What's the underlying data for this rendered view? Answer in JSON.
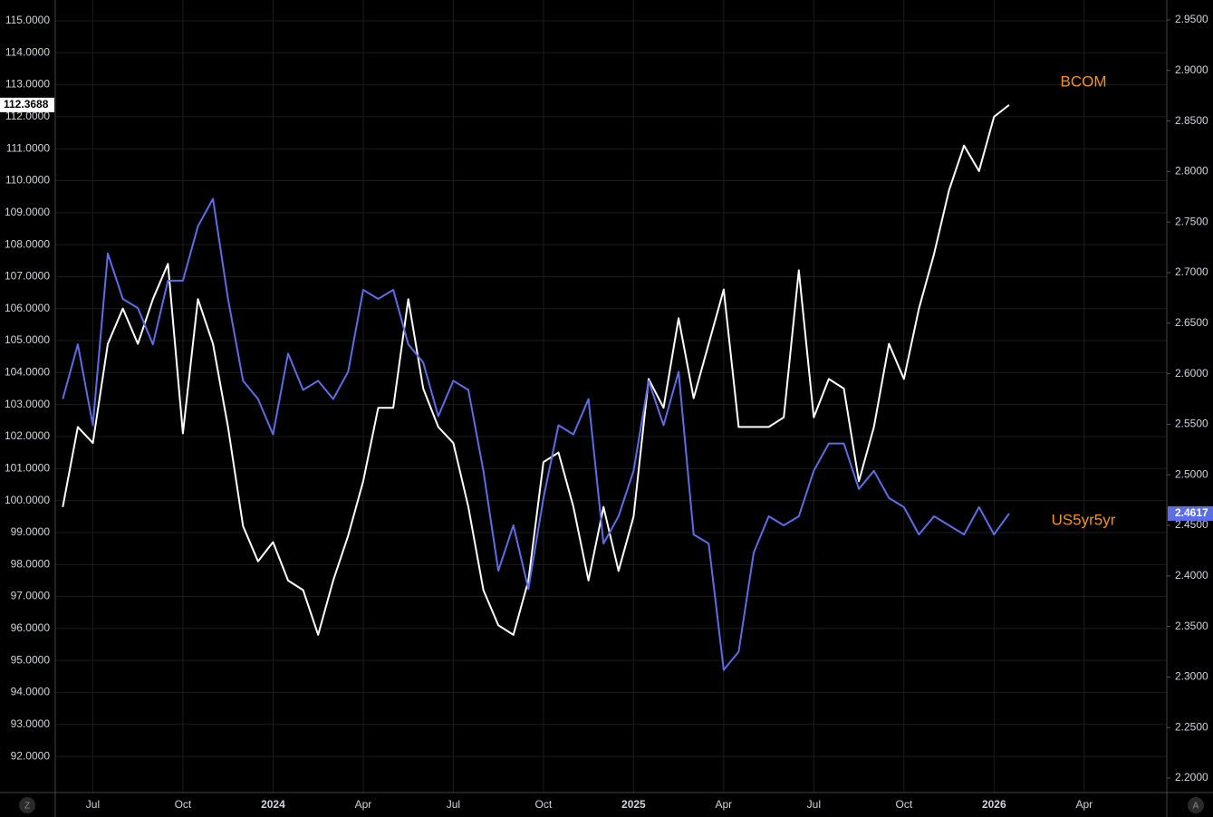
{
  "chart_data": {
    "type": "line",
    "categories": [
      null,
      null,
      "Jul",
      null,
      null,
      null,
      null,
      null,
      "Oct",
      null,
      null,
      null,
      null,
      null,
      "2024",
      null,
      null,
      null,
      null,
      null,
      "Apr",
      null,
      null,
      null,
      null,
      null,
      "Jul",
      null,
      null,
      null,
      null,
      null,
      "Oct",
      null,
      null,
      null,
      null,
      null,
      "2025",
      null,
      null,
      null,
      null,
      null,
      "Apr",
      null,
      null,
      null,
      null,
      null,
      "Jul",
      null,
      null,
      null,
      null,
      null,
      "Oct",
      null,
      null,
      null,
      null,
      null,
      "2026",
      null,
      null,
      null,
      null,
      null,
      "Apr",
      null,
      null,
      null,
      null,
      null
    ],
    "series": [
      {
        "name": "BCOM",
        "color": "#ffffff",
        "axis": "y",
        "last_value_label": "112.3688",
        "values": [
          99.8,
          102.3,
          101.8,
          104.9,
          106.0,
          104.9,
          106.3,
          107.4,
          102.1,
          106.3,
          104.9,
          102.3,
          99.2,
          98.1,
          98.7,
          97.5,
          97.2,
          95.8,
          97.5,
          98.9,
          100.6,
          102.9,
          102.9,
          106.3,
          103.5,
          102.3,
          101.8,
          99.8,
          97.2,
          96.1,
          95.8,
          97.5,
          101.2,
          101.5,
          99.8,
          97.5,
          99.8,
          97.8,
          99.5,
          103.8,
          102.9,
          105.7,
          103.2,
          104.9,
          106.6,
          102.3,
          102.3,
          102.3,
          102.6,
          107.2,
          102.6,
          103.8,
          103.5,
          100.6,
          102.3,
          104.9,
          103.8,
          106.0,
          107.7,
          109.7,
          111.1,
          110.3,
          112.0,
          112.3688,
          null,
          null,
          null,
          null,
          null,
          null,
          null,
          null,
          null,
          null
        ]
      },
      {
        "name": "US5yr5yr",
        "color": "#5b6ee8",
        "axis": "y2",
        "last_value_label": "2.4617",
        "values": [
          2.575,
          2.629,
          2.549,
          2.719,
          2.674,
          2.665,
          2.629,
          2.692,
          2.692,
          2.746,
          2.773,
          2.674,
          2.593,
          2.575,
          2.54,
          2.62,
          2.584,
          2.593,
          2.575,
          2.602,
          2.683,
          2.674,
          2.683,
          2.629,
          2.611,
          2.558,
          2.593,
          2.584,
          2.504,
          2.405,
          2.45,
          2.387,
          2.477,
          2.549,
          2.54,
          2.575,
          2.432,
          2.459,
          2.504,
          2.593,
          2.549,
          2.602,
          2.441,
          2.432,
          2.307,
          2.325,
          2.423,
          2.459,
          2.45,
          2.459,
          2.504,
          2.531,
          2.531,
          2.486,
          2.504,
          2.477,
          2.468,
          2.441,
          2.459,
          2.45,
          2.441,
          2.468,
          2.441,
          2.4617,
          null,
          null,
          null,
          null,
          null,
          null,
          null,
          null,
          null,
          null
        ]
      }
    ],
    "series_label_color": "#f7931a",
    "ylim": [
      90.87,
      115.65
    ],
    "yticks": [
      {
        "value": 92,
        "label": "92.0000"
      },
      {
        "value": 93,
        "label": "93.0000"
      },
      {
        "value": 94,
        "label": "94.0000"
      },
      {
        "value": 95,
        "label": "95.0000"
      },
      {
        "value": 96,
        "label": "96.0000"
      },
      {
        "value": 97,
        "label": "97.0000"
      },
      {
        "value": 98,
        "label": "98.0000"
      },
      {
        "value": 99,
        "label": "99.0000"
      },
      {
        "value": 100,
        "label": "100.0000"
      },
      {
        "value": 101,
        "label": "101.0000"
      },
      {
        "value": 102,
        "label": "102.0000"
      },
      {
        "value": 103,
        "label": "103.0000"
      },
      {
        "value": 104,
        "label": "104.0000"
      },
      {
        "value": 105,
        "label": "105.0000"
      },
      {
        "value": 106,
        "label": "106.0000"
      },
      {
        "value": 107,
        "label": "107.0000"
      },
      {
        "value": 108,
        "label": "108.0000"
      },
      {
        "value": 109,
        "label": "109.0000"
      },
      {
        "value": 110,
        "label": "110.0000"
      },
      {
        "value": 111,
        "label": "111.0000"
      },
      {
        "value": 112,
        "label": "112.0000"
      },
      {
        "value": 113,
        "label": "113.0000"
      },
      {
        "value": 114,
        "label": "114.0000"
      },
      {
        "value": 115,
        "label": "115.0000"
      }
    ],
    "y2lim": [
      2.1857,
      2.9697
    ],
    "y2ticks": [
      {
        "value": 2.2,
        "label": "2.2000"
      },
      {
        "value": 2.25,
        "label": "2.2500"
      },
      {
        "value": 2.3,
        "label": "2.3000"
      },
      {
        "value": 2.35,
        "label": "2.3500"
      },
      {
        "value": 2.4,
        "label": "2.4000"
      },
      {
        "value": 2.45,
        "label": "2.4500"
      },
      {
        "value": 2.5,
        "label": "2.5000"
      },
      {
        "value": 2.55,
        "label": "2.5500"
      },
      {
        "value": 2.6,
        "label": "2.6000"
      },
      {
        "value": 2.65,
        "label": "2.6500"
      },
      {
        "value": 2.7,
        "label": "2.7000"
      },
      {
        "value": 2.75,
        "label": "2.7500"
      },
      {
        "value": 2.8,
        "label": "2.8000"
      },
      {
        "value": 2.85,
        "label": "2.8500"
      },
      {
        "value": 2.9,
        "label": "2.9000"
      },
      {
        "value": 2.95,
        "label": "2.9500"
      }
    ],
    "grid": true
  },
  "buttons": {
    "left": "Z",
    "right": "A"
  }
}
